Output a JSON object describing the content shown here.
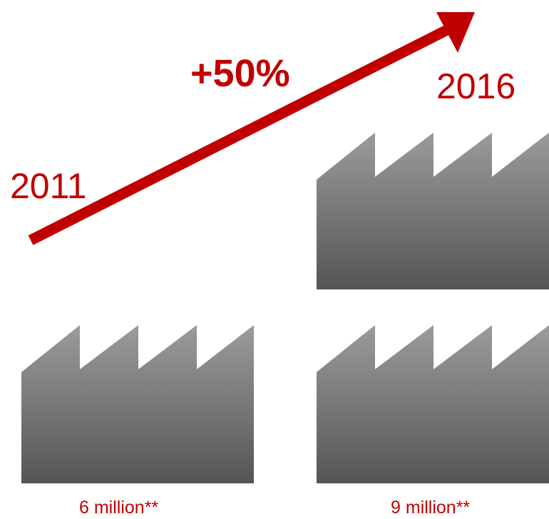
{
  "colors": {
    "accent": "#c00000",
    "factory_top": "#9b9b9b",
    "factory_bottom": "#555555"
  },
  "labels": {
    "year_start": "2011",
    "year_end": "2016",
    "growth": "+50%",
    "count_start": "6 million**",
    "count_end": "9 million**"
  },
  "factories": {
    "icon": "factory-icon",
    "start_count": 1,
    "end_count": 2
  }
}
